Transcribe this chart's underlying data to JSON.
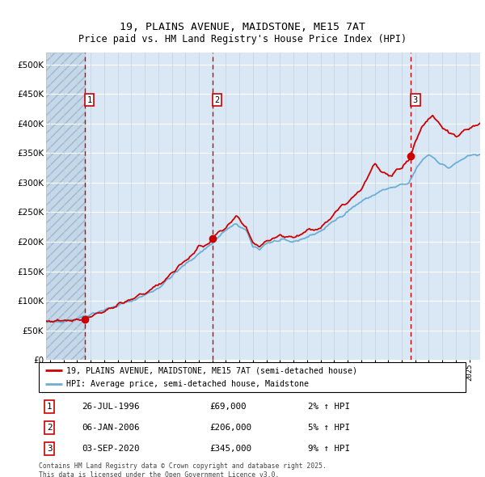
{
  "title": "19, PLAINS AVENUE, MAIDSTONE, ME15 7AT",
  "subtitle": "Price paid vs. HM Land Registry's House Price Index (HPI)",
  "legend_line1": "19, PLAINS AVENUE, MAIDSTONE, ME15 7AT (semi-detached house)",
  "legend_line2": "HPI: Average price, semi-detached house, Maidstone",
  "footnote": "Contains HM Land Registry data © Crown copyright and database right 2025.\nThis data is licensed under the Open Government Licence v3.0.",
  "sales": [
    {
      "label": "1",
      "date_x": 1996.56,
      "price": 69000,
      "date_str": "26-JUL-1996",
      "pct": "2% ↑ HPI"
    },
    {
      "label": "2",
      "date_x": 2006.02,
      "price": 206000,
      "date_str": "06-JAN-2006",
      "pct": "5% ↑ HPI"
    },
    {
      "label": "3",
      "date_x": 2020.67,
      "price": 345000,
      "date_str": "03-SEP-2020",
      "pct": "9% ↑ HPI"
    }
  ],
  "hpi_color": "#6baed6",
  "price_color": "#cc0000",
  "sale_marker_color": "#cc0000",
  "vline_color": "#cc0000",
  "bg_color": "#dae8f5",
  "hatch_bg_color": "#c5d8ea",
  "grid_h_color": "#ffffff",
  "grid_v_color": "#c0d0e0",
  "ylim": [
    0,
    520000
  ],
  "yticks": [
    0,
    50000,
    100000,
    150000,
    200000,
    250000,
    300000,
    350000,
    400000,
    450000,
    500000
  ],
  "xlim_start": 1993.7,
  "xlim_end": 2025.8,
  "title_fontsize": 9.5,
  "subtitle_fontsize": 8.5
}
